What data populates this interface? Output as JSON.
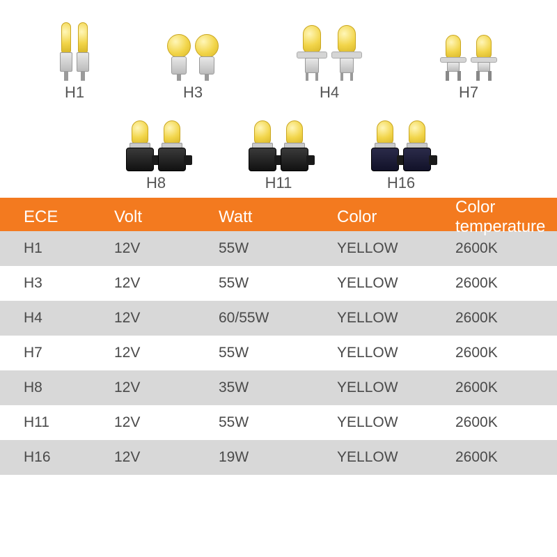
{
  "gallery": {
    "row1": [
      {
        "label": "H1",
        "kind": "h1"
      },
      {
        "label": "H3",
        "kind": "h3"
      },
      {
        "label": "H4",
        "kind": "h4"
      },
      {
        "label": "H7",
        "kind": "h7"
      }
    ],
    "row2": [
      {
        "label": "H8",
        "kind": "hsock h8"
      },
      {
        "label": "H11",
        "kind": "hsock h11"
      },
      {
        "label": "H16",
        "kind": "hsock h16"
      }
    ]
  },
  "table": {
    "header_bg": "#f37a1f",
    "header_fg": "#ffffff",
    "band_bg": "#d8d8d8",
    "text_fg": "#4a4a4a",
    "columns": [
      "ECE",
      "Volt",
      "Watt",
      "Color",
      "Color temperature"
    ],
    "rows": [
      {
        "ece": "H1",
        "volt": "12V",
        "watt": "55W",
        "color": "YELLOW",
        "temp": "2600K",
        "band": true
      },
      {
        "ece": "H3",
        "volt": "12V",
        "watt": "55W",
        "color": "YELLOW",
        "temp": "2600K",
        "band": false
      },
      {
        "ece": "H4",
        "volt": "12V",
        "watt": "60/55W",
        "color": "YELLOW",
        "temp": "2600K",
        "band": true
      },
      {
        "ece": "H7",
        "volt": "12V",
        "watt": "55W",
        "color": "YELLOW",
        "temp": "2600K",
        "band": false
      },
      {
        "ece": "H8",
        "volt": "12V",
        "watt": "35W",
        "color": "YELLOW",
        "temp": "2600K",
        "band": true
      },
      {
        "ece": "H11",
        "volt": "12V",
        "watt": "55W",
        "color": "YELLOW",
        "temp": "2600K",
        "band": false
      },
      {
        "ece": "H16",
        "volt": "12V",
        "watt": "19W",
        "color": "YELLOW",
        "temp": "2600K",
        "band": true
      }
    ]
  }
}
